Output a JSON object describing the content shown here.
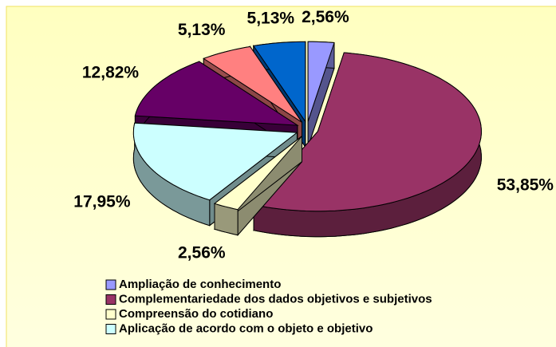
{
  "chart_data": {
    "type": "pie3d",
    "categories": [
      "Ampliação de conhecimento",
      "Complementariedade dos dados objetivos e subjetivos",
      "Compreensão do cotidiano",
      "Aplicação de acordo com o objeto e objetivo",
      null,
      null,
      null
    ],
    "values": [
      2.56,
      53.85,
      2.56,
      17.95,
      12.82,
      5.13,
      5.13
    ],
    "value_labels": [
      "2,56%",
      "53,85%",
      "2,56%",
      "17,95%",
      "12,82%",
      "5,13%",
      "5,13%"
    ],
    "colors": [
      "#9999ff",
      "#993366",
      "#ffffcc",
      "#ccffff",
      "#660066",
      "#ff8080",
      "#0066cc"
    ],
    "legend": "bottom-left"
  }
}
